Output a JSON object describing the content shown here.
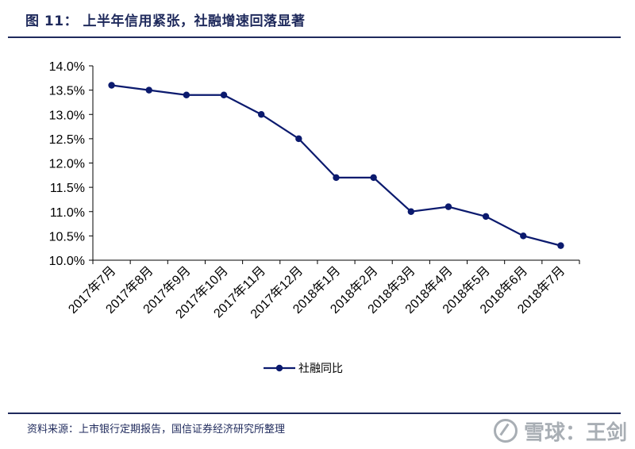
{
  "figure": {
    "title": "图 11：  上半年信用紧张，社融增速回落显著",
    "source": "资料来源：上市银行定期报告，国信证券经济研究所整理",
    "watermark": "雪球：王剑"
  },
  "chart_data": {
    "type": "line",
    "title": "",
    "xlabel": "",
    "ylabel": "",
    "categories": [
      "2017年7月",
      "2017年8月",
      "2017年9月",
      "2017年10月",
      "2017年11月",
      "2017年12月",
      "2018年1月",
      "2018年2月",
      "2018年3月",
      "2018年4月",
      "2018年5月",
      "2018年6月",
      "2018年7月"
    ],
    "series": [
      {
        "name": "社融同比",
        "values": [
          13.6,
          13.5,
          13.4,
          13.4,
          13.0,
          12.5,
          11.7,
          11.7,
          11.0,
          11.1,
          10.9,
          10.5,
          10.3
        ],
        "color": "#0b1a6e"
      }
    ],
    "ylim": [
      10.0,
      14.0
    ],
    "yticks": [
      "10.0%",
      "10.5%",
      "11.0%",
      "11.5%",
      "12.0%",
      "12.5%",
      "13.0%",
      "13.5%",
      "14.0%"
    ],
    "grid": false,
    "legend": "bottom-center"
  }
}
